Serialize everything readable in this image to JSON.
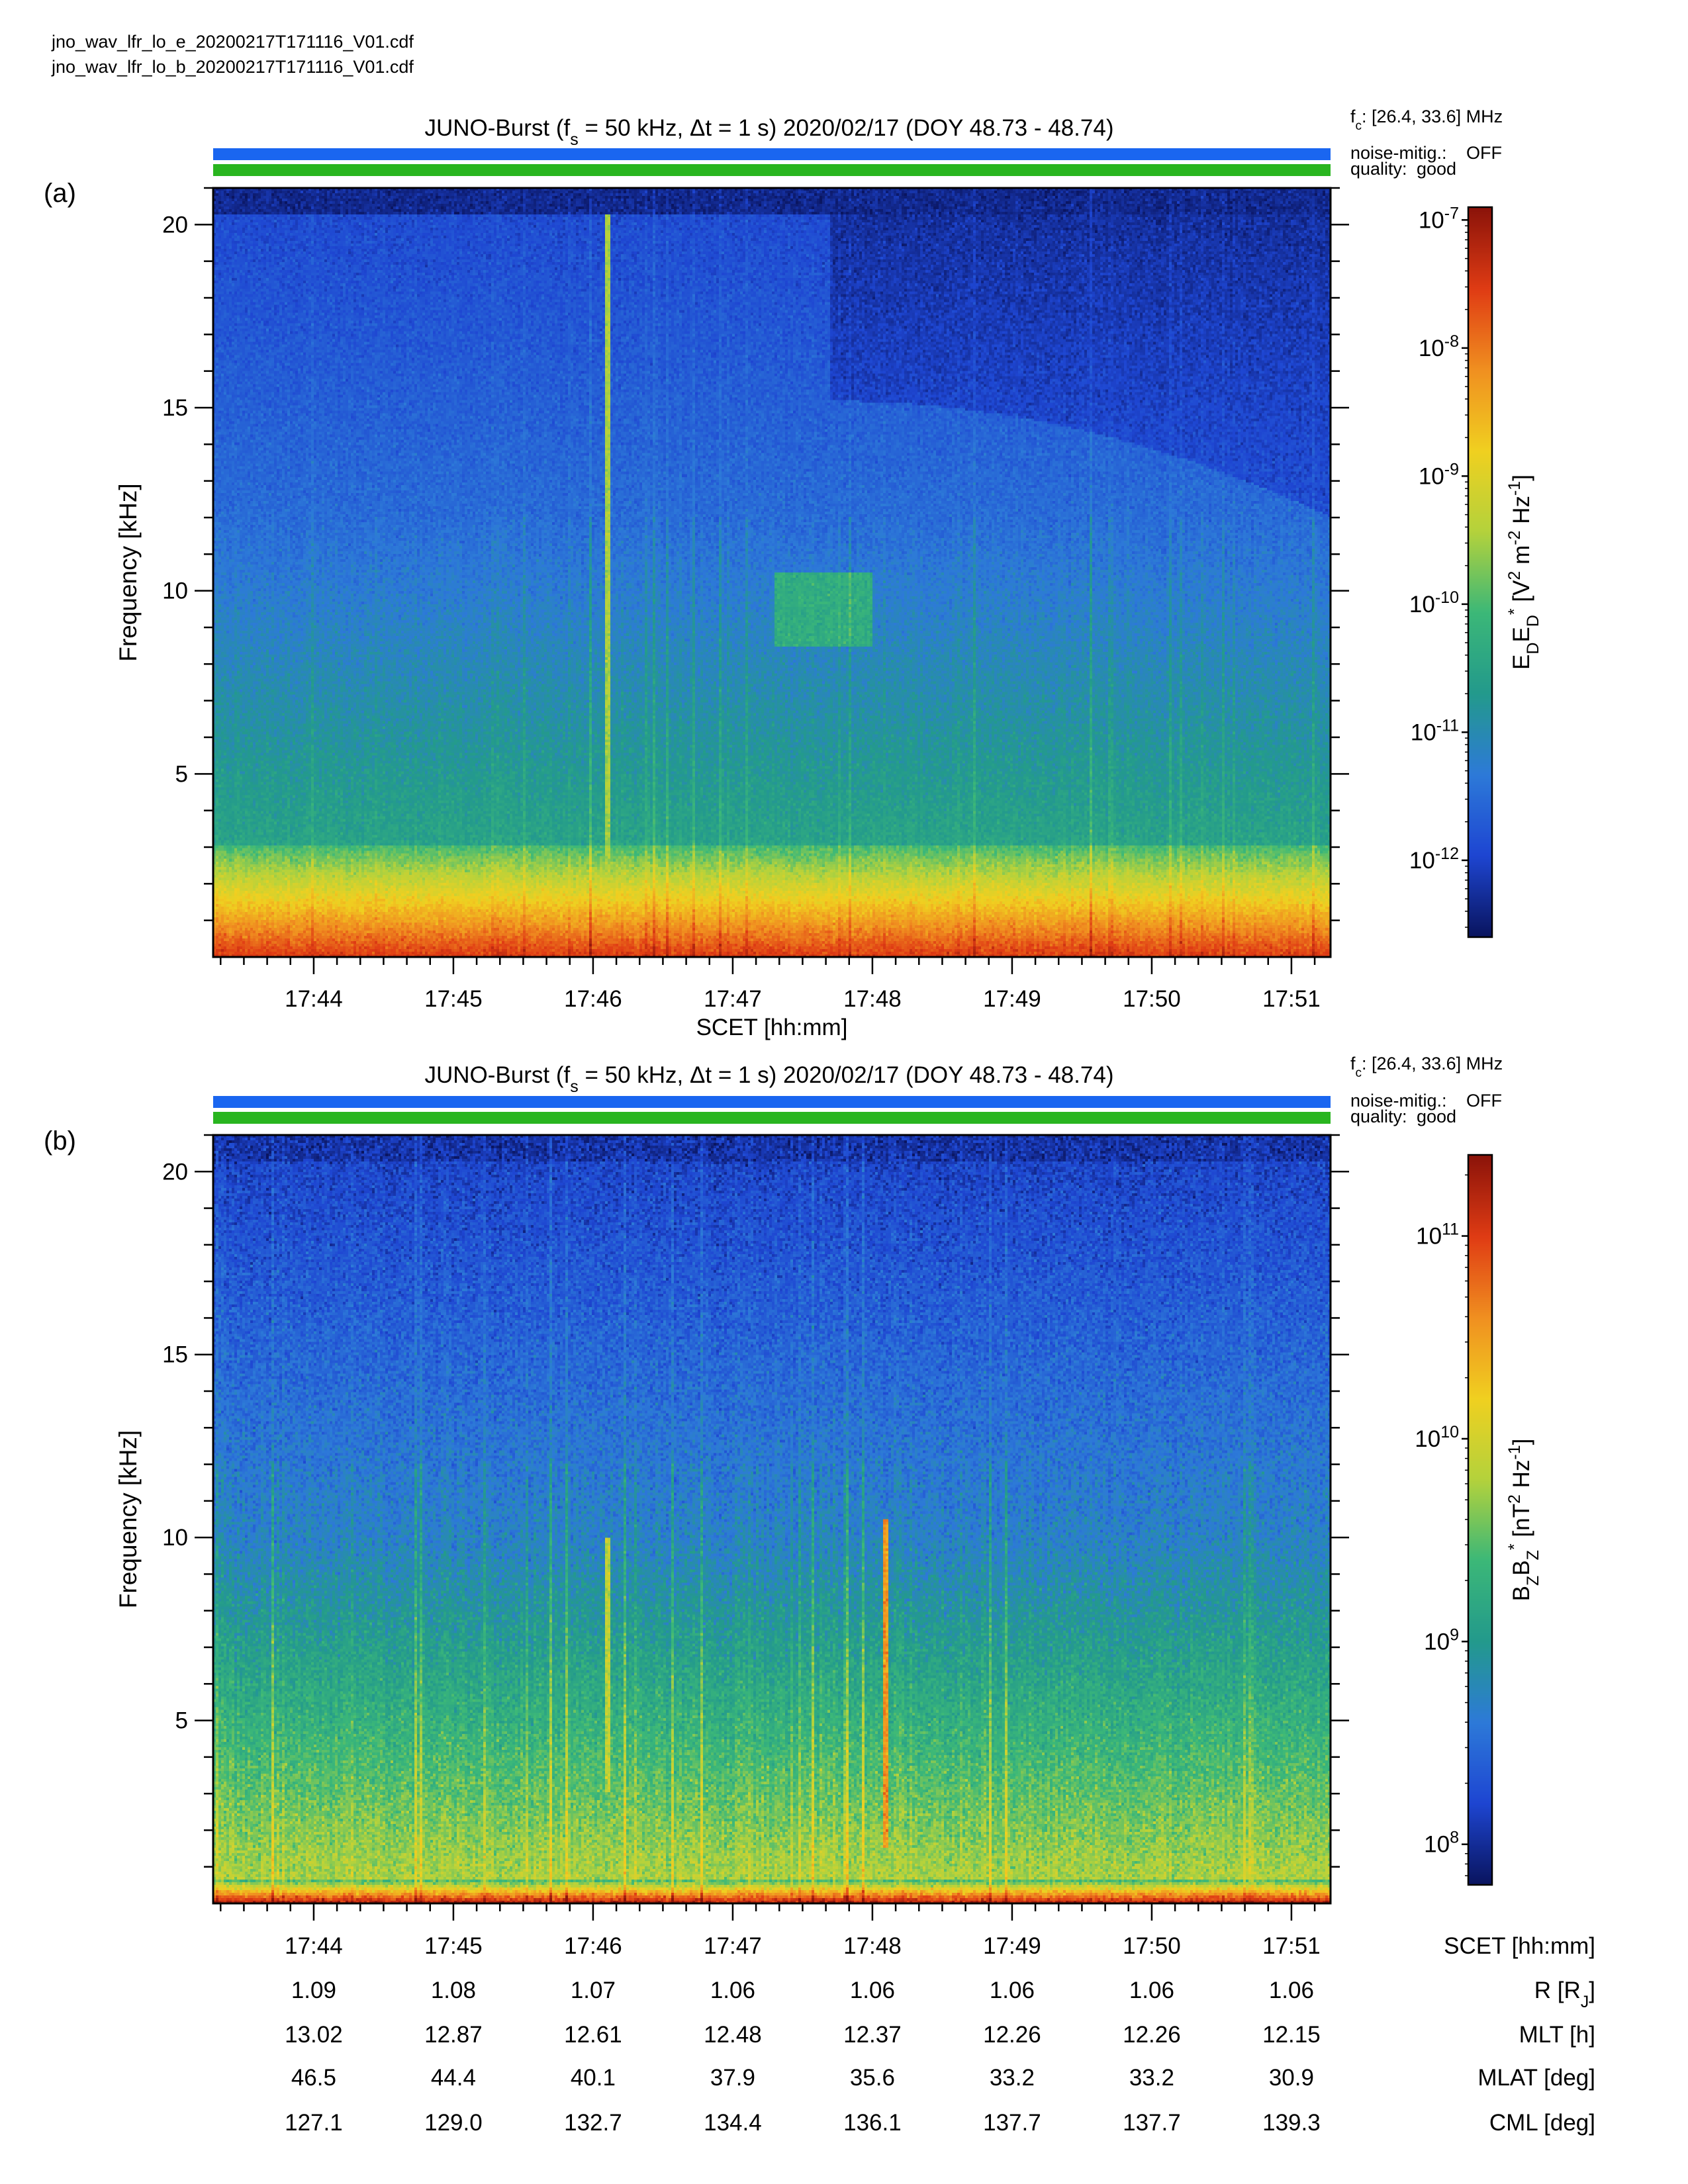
{
  "files": [
    "jno_wav_lfr_lo_e_20200217T171116_V01.cdf",
    "jno_wav_lfr_lo_b_20200217T171116_V01.cdf"
  ],
  "panels": [
    {
      "id": "a",
      "label": "(a)",
      "title": {
        "pre": "JUNO-Burst (f",
        "sub": "s",
        "post": " = 50 kHz, Δt = 1 s)  2020/02/17 (DOY 48.73 - 48.74)"
      },
      "fc": {
        "pre": "f",
        "sub": "c",
        "post": ": [26.4, 33.6] MHz"
      },
      "noise_label": "noise-mitig.:",
      "noise_value": "OFF",
      "quality_label": "quality:",
      "quality_value": "good",
      "ylabel": "Frequency [kHz]",
      "xlabel": "SCET [hh:mm]",
      "colorbar_label": {
        "parts": [
          [
            "E",
            ""
          ],
          [
            "D",
            "sub"
          ],
          [
            "E",
            ""
          ],
          [
            "D",
            "sub"
          ],
          [
            "*",
            "sup"
          ],
          [
            " [V",
            ""
          ],
          [
            "2",
            "sup"
          ],
          [
            " m",
            ""
          ],
          [
            "-2",
            "sup"
          ],
          [
            " Hz",
            ""
          ],
          [
            "-1",
            "sup"
          ],
          [
            "]",
            ""
          ]
        ]
      },
      "colorbar_ticks": [
        "-7",
        "-8",
        "-9",
        "-10",
        "-11",
        "-12"
      ]
    },
    {
      "id": "b",
      "label": "(b)",
      "title": {
        "pre": "JUNO-Burst (f",
        "sub": "s",
        "post": " = 50 kHz, Δt = 1 s)  2020/02/17 (DOY 48.73 - 48.74)"
      },
      "fc": {
        "pre": "f",
        "sub": "c",
        "post": ": [26.4, 33.6] MHz"
      },
      "noise_label": "noise-mitig.:",
      "noise_value": "OFF",
      "quality_label": "quality:",
      "quality_value": "good",
      "ylabel": "Frequency [kHz]",
      "colorbar_label": {
        "parts": [
          [
            "B",
            ""
          ],
          [
            "Z",
            "sub"
          ],
          [
            "B",
            ""
          ],
          [
            "Z",
            "sub"
          ],
          [
            "*",
            "sup"
          ],
          [
            " [nT",
            ""
          ],
          [
            "2",
            "sup"
          ],
          [
            " Hz",
            ""
          ],
          [
            "-1",
            "sup"
          ],
          [
            "]",
            ""
          ]
        ]
      },
      "colorbar_ticks": [
        "11",
        "10",
        "9",
        "8"
      ]
    }
  ],
  "colors": {
    "noise_bar": "#1a66f0",
    "quality_bar": "#29b51f",
    "noise_value": "#1a66f0",
    "quality_value": "#29b51f"
  },
  "ephemeris": {
    "rows": [
      {
        "label": "SCET [hh:mm]",
        "values": [
          "17:44",
          "17:45",
          "17:46",
          "17:47",
          "17:48",
          "17:49",
          "17:50",
          "17:51"
        ]
      },
      {
        "label": "R [R_J]",
        "values": [
          "1.09",
          "1.08",
          "1.07",
          "1.06",
          "1.06",
          "1.06",
          "1.06",
          "1.06"
        ]
      },
      {
        "label": "MLT [h]",
        "values": [
          "13.02",
          "12.87",
          "12.61",
          "12.48",
          "12.37",
          "12.26",
          "12.26",
          "12.15"
        ]
      },
      {
        "label": "MLAT [deg]",
        "values": [
          "46.5",
          "44.4",
          "40.1",
          "37.9",
          "35.6",
          "33.2",
          "33.2",
          "30.9"
        ]
      },
      {
        "label": "CML [deg]",
        "values": [
          "127.1",
          "129.0",
          "132.7",
          "134.4",
          "136.1",
          "137.7",
          "137.7",
          "139.3"
        ]
      }
    ]
  },
  "chart_data": [
    {
      "type": "heatmap",
      "panel": "a",
      "quantity": "E_D E_D* [V^2 m^-2 Hz^-1]",
      "x_ticks": [
        "17:44",
        "17:45",
        "17:46",
        "17:47",
        "17:48",
        "17:49",
        "17:50",
        "17:51"
      ],
      "y_ticks": [
        5,
        10,
        15,
        20
      ],
      "ylim": [
        0,
        21
      ],
      "xlim_minutes": [
        43.28,
        51.28
      ],
      "color_scale": "log",
      "zlim_log10": [
        -12.6,
        -6.9
      ],
      "colormap": [
        "#0a1560",
        "#1e46d2",
        "#2d7ad8",
        "#239a8c",
        "#3cb878",
        "#b4d23c",
        "#f0d020",
        "#f09020",
        "#e03c14",
        "#8c140a"
      ],
      "features": [
        {
          "kind": "intense band",
          "f_kHz": [
            0,
            3
          ],
          "log10": -7.5
        },
        {
          "kind": "emission fading with frequency",
          "f_kHz": [
            3,
            12
          ],
          "log10": [
            -10.5,
            -11.5
          ]
        },
        {
          "kind": "bright vertical striation",
          "time": "17:46.1",
          "log10": -9.5
        },
        {
          "kind": "cutoff arc",
          "time_range": [
            "17:47.7",
            "17:51.3"
          ],
          "f_kHz": [
            18.2,
            15.0
          ]
        },
        {
          "kind": "patch",
          "time_range": [
            "17:47.3",
            "17:48.0"
          ],
          "f_kHz": [
            8.5,
            10.5
          ],
          "log10": -10.3
        }
      ]
    },
    {
      "type": "heatmap",
      "panel": "b",
      "quantity": "B_Z B_Z* [nT^2 Hz^-1]",
      "x_ticks": [
        "17:44",
        "17:45",
        "17:46",
        "17:47",
        "17:48",
        "17:49",
        "17:50",
        "17:51"
      ],
      "y_ticks": [
        5,
        10,
        15,
        20
      ],
      "ylim": [
        0,
        21
      ],
      "xlim_minutes": [
        43.28,
        51.28
      ],
      "color_scale": "log",
      "zlim_log10": [
        7.8,
        11.4
      ],
      "colormap": [
        "#0a1560",
        "#1e46d2",
        "#2d7ad8",
        "#239a8c",
        "#3cb878",
        "#b4d23c",
        "#f0d020",
        "#f09020",
        "#e03c14",
        "#8c140a"
      ],
      "features": [
        {
          "kind": "intense band",
          "f_kHz": [
            0,
            0.6
          ],
          "log10": 11.2
        },
        {
          "kind": "emission fading with frequency",
          "f_kHz": [
            0.6,
            10
          ],
          "log10": [
            9.8,
            8.7
          ]
        },
        {
          "kind": "vertical line",
          "time": "17:48.1",
          "f_kHz": [
            1.5,
            10.5
          ],
          "log10": 10.6
        },
        {
          "kind": "vertical line",
          "time": "17:46.1",
          "f_kHz": [
            3,
            10
          ],
          "log10": 9.9
        }
      ]
    }
  ]
}
